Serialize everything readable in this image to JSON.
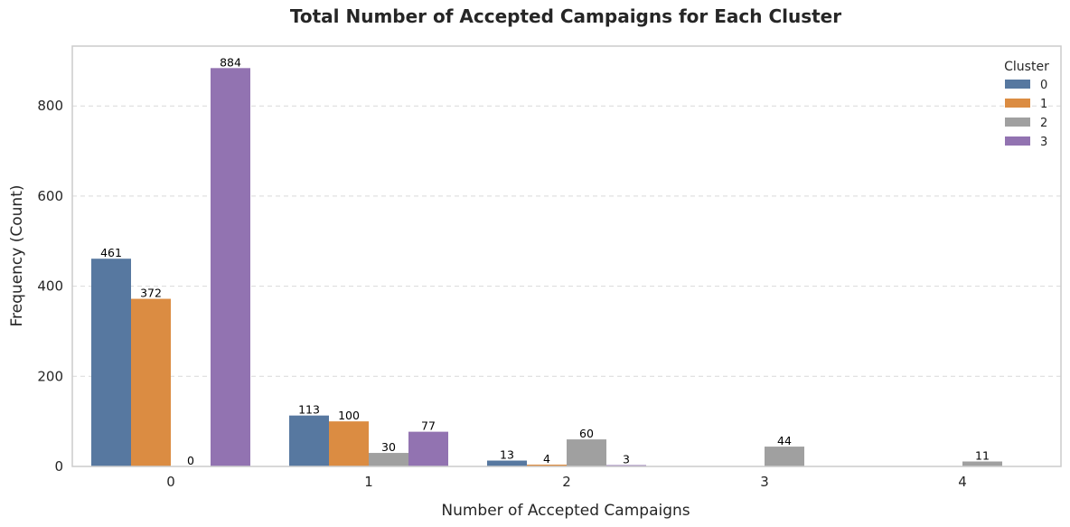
{
  "chart_data": {
    "type": "bar",
    "title": "Total Number of Accepted Campaigns for Each Cluster",
    "xlabel": "Number of Accepted Campaigns",
    "ylabel": "Frequency (Count)",
    "categories": [
      "0",
      "1",
      "2",
      "3",
      "4"
    ],
    "ylim": [
      0,
      930
    ],
    "yticks": [
      0,
      200,
      400,
      600,
      800
    ],
    "grid": "horizontal-dashed",
    "legend": {
      "title": "Cluster",
      "placement": "top-right"
    },
    "series": [
      {
        "name": "0",
        "color": "#5778a0",
        "values": [
          461,
          113,
          13,
          0,
          0
        ],
        "labels": [
          "461",
          "113",
          "13",
          "",
          ""
        ]
      },
      {
        "name": "1",
        "color": "#db8c42",
        "values": [
          372,
          100,
          4,
          0,
          0
        ],
        "labels": [
          "372",
          "100",
          "4",
          "",
          ""
        ]
      },
      {
        "name": "2",
        "color": "#a0a0a0",
        "values": [
          0,
          30,
          60,
          44,
          11
        ],
        "labels": [
          "0",
          "30",
          "60",
          "44",
          "11"
        ]
      },
      {
        "name": "3",
        "color": "#9273b1",
        "values": [
          884,
          77,
          3,
          0,
          0
        ],
        "labels": [
          "884",
          "77",
          "3",
          "",
          ""
        ]
      }
    ]
  }
}
